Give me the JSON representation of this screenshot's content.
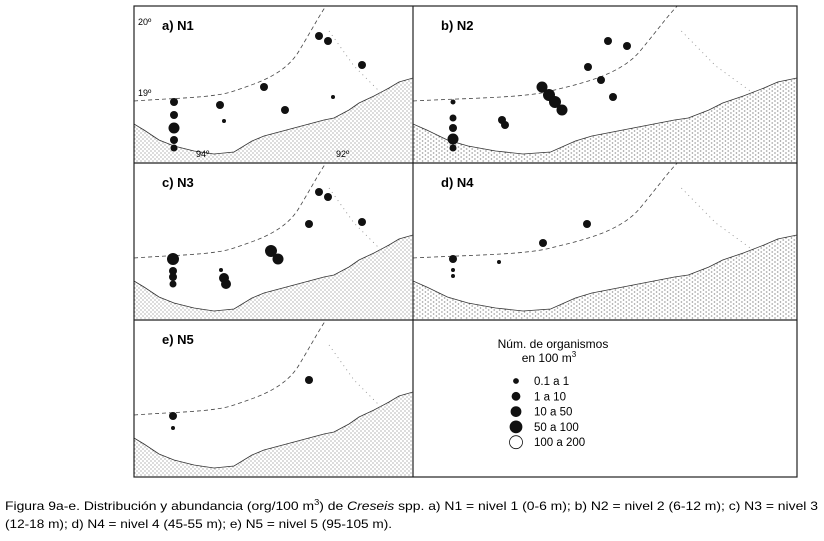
{
  "panels": [
    {
      "label": "a) N1"
    },
    {
      "label": "b) N2"
    },
    {
      "label": "c) N3"
    },
    {
      "label": "d) N4"
    },
    {
      "label": "e) N5"
    }
  ],
  "coordinates": {
    "lat_20": "20º",
    "lat_19": "19º",
    "lon_94": "94º",
    "lon_92": "92º"
  },
  "legend": {
    "title_line1": "Núm. de organismos",
    "title_line2": "en 100 m",
    "title_sup": "3",
    "classes": [
      "0.1  a  1",
      "1  a  10",
      "10  a  50",
      "50  a  100",
      "100  a  200"
    ]
  },
  "caption": {
    "line1_a": "Figura 9a-e. Distribución y abundancia (org/100 m",
    "line1_sup": "3",
    "line1_b": ") de ",
    "line1_italic": "Creseis",
    "line1_c": " spp. a) N1 = nivel 1 (0-6 m); b) N2 = nivel 2 (6-12 m); c) N3 = nivel 3",
    "line2": "(12-18 m); d) N4 = nivel 4 (45-55 m); e) N5 = nivel 5 (95-105 m)."
  }
}
